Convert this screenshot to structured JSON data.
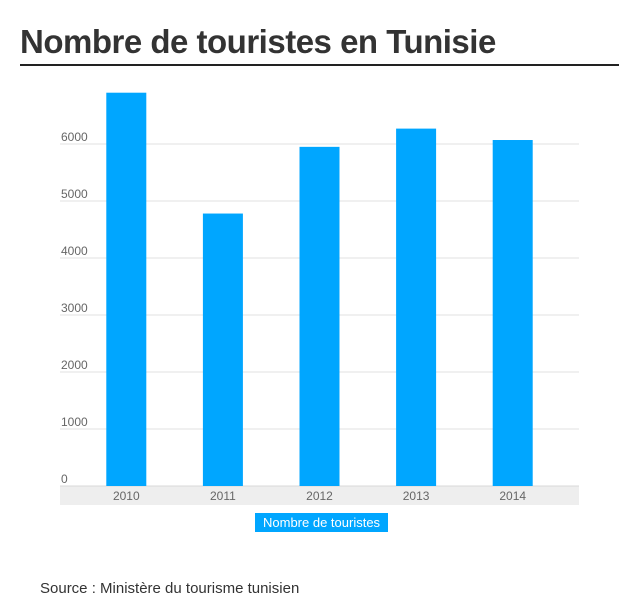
{
  "title": "Nombre de touristes en Tunisie",
  "source": "Source : Ministère du tourisme tunisien",
  "colors": {
    "bar": "#00a6ff",
    "grid": "#e0e0e0",
    "axis_band": "#eeeeee",
    "title": "#333333"
  },
  "chart_data": {
    "type": "bar",
    "title": "Nombre de touristes en Tunisie",
    "categories": [
      "2010",
      "2011",
      "2012",
      "2013",
      "2014"
    ],
    "series": [
      {
        "name": "Nombre de touristes",
        "values": [
          6900,
          4780,
          5950,
          6270,
          6070
        ]
      }
    ],
    "yticks": [
      "0",
      "1000",
      "2000",
      "3000",
      "4000",
      "5000",
      "6000"
    ],
    "ylim": [
      0,
      7000
    ],
    "grid": true,
    "legend": "bottom-center"
  }
}
